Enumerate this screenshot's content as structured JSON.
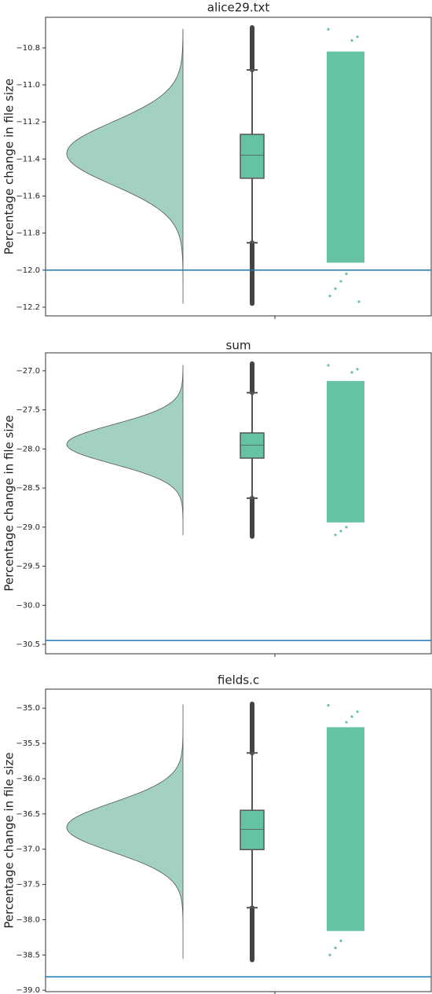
{
  "chart_data": [
    {
      "type": "raincloud",
      "title": "alice29.txt",
      "ylabel": "Percentage change in file size",
      "ylim": [
        -12.247,
        -10.635
      ],
      "yticks": [
        {
          "value": -10.8,
          "label": "−10.8"
        },
        {
          "value": -11.0,
          "label": "−11.0"
        },
        {
          "value": -11.2,
          "label": "−11.2"
        },
        {
          "value": -11.4,
          "label": "−11.4"
        },
        {
          "value": -11.6,
          "label": "−11.6"
        },
        {
          "value": -11.8,
          "label": "−11.8"
        },
        {
          "value": -12.0,
          "label": "−12.0"
        },
        {
          "value": -12.2,
          "label": "−12.2"
        }
      ],
      "kde": {
        "peak": -11.37,
        "sd": 0.17,
        "max": -10.7,
        "min": -12.18,
        "color": "#a2d1bf"
      },
      "box": {
        "whisker_low": -11.852,
        "q1": -11.504,
        "median": -11.38,
        "q3": -11.267,
        "whisker_high": -10.919,
        "outlier_min": -12.18,
        "outlier_max": -10.69,
        "color": "#66c2a5"
      },
      "strip": {
        "dense_low": -11.96,
        "dense_high": -10.82,
        "sparse": [
          -10.7,
          -10.74,
          -10.76,
          -12.02,
          -12.06,
          -12.1,
          -12.14,
          -12.17
        ],
        "color": "#66c2a5"
      },
      "hline": {
        "value": -12.0,
        "color": "#1f77b4"
      }
    },
    {
      "type": "raincloud",
      "title": "sum",
      "ylabel": "Percentage change in file size",
      "ylim": [
        -30.62,
        -26.77
      ],
      "yticks": [
        {
          "value": -27.0,
          "label": "−27.0"
        },
        {
          "value": -27.5,
          "label": "−27.5"
        },
        {
          "value": -28.0,
          "label": "−28.0"
        },
        {
          "value": -28.5,
          "label": "−28.5"
        },
        {
          "value": -29.0,
          "label": "−29.0"
        },
        {
          "value": -29.5,
          "label": "−29.5"
        },
        {
          "value": -30.0,
          "label": "−30.0"
        },
        {
          "value": -30.5,
          "label": "−30.5"
        }
      ],
      "kde": {
        "peak": -27.94,
        "sd": 0.25,
        "max": -26.93,
        "min": -29.1,
        "color": "#a2d1bf"
      },
      "box": {
        "whisker_low": -28.63,
        "q1": -28.117,
        "median": -27.95,
        "q3": -27.795,
        "whisker_high": -27.28,
        "outlier_min": -29.12,
        "outlier_max": -26.91,
        "color": "#66c2a5"
      },
      "strip": {
        "dense_low": -28.94,
        "dense_high": -27.13,
        "sparse": [
          -26.93,
          -26.98,
          -27.02,
          -29.0,
          -29.05,
          -29.1
        ],
        "color": "#66c2a5"
      },
      "hline": {
        "value": -30.45,
        "color": "#1f77b4"
      }
    },
    {
      "type": "raincloud",
      "title": "fields.c",
      "ylabel": "Percentage change in file size",
      "ylim": [
        -39.02,
        -34.73
      ],
      "yticks": [
        {
          "value": -35.0,
          "label": "−35.0"
        },
        {
          "value": -35.5,
          "label": "−35.5"
        },
        {
          "value": -36.0,
          "label": "−36.0"
        },
        {
          "value": -36.5,
          "label": "−36.5"
        },
        {
          "value": -37.0,
          "label": "−37.0"
        },
        {
          "value": -37.5,
          "label": "−37.5"
        },
        {
          "value": -38.0,
          "label": "−38.0"
        },
        {
          "value": -38.5,
          "label": "−38.5"
        },
        {
          "value": -39.0,
          "label": "−39.0"
        }
      ],
      "kde": {
        "peak": -36.69,
        "sd": 0.35,
        "max": -34.95,
        "min": -38.55,
        "color": "#a2d1bf"
      },
      "box": {
        "whisker_low": -37.83,
        "q1": -37.006,
        "median": -36.72,
        "q3": -36.448,
        "whisker_high": -35.635,
        "outlier_min": -38.57,
        "outlier_max": -34.94,
        "color": "#66c2a5"
      },
      "strip": {
        "dense_low": -38.16,
        "dense_high": -35.27,
        "sparse": [
          -34.96,
          -35.05,
          -35.12,
          -35.2,
          -38.3,
          -38.4,
          -38.5
        ],
        "color": "#66c2a5"
      },
      "hline": {
        "value": -38.81,
        "color": "#1f77b4"
      }
    }
  ]
}
